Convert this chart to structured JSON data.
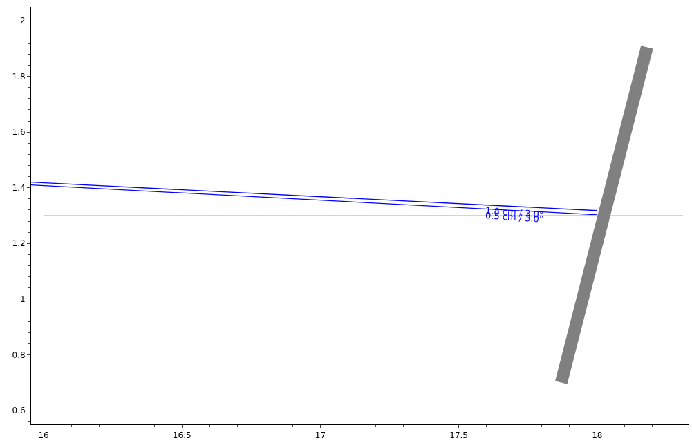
{
  "chart_data": {
    "type": "line",
    "xlim": [
      15.955,
      18.33
    ],
    "ylim": [
      0.55,
      2.05
    ],
    "xticks": [
      16,
      16.5,
      17,
      17.5,
      18
    ],
    "yticks": [
      0.6,
      0.8,
      {
        "value": 1,
        "label": "1"
      },
      1.2,
      1.4,
      1.6,
      1.8,
      {
        "value": 2,
        "label": "2"
      }
    ],
    "marker": "none",
    "line_style": "solid",
    "series": [
      {
        "color": "#0000ff",
        "x": [
          15.955,
          18.0
        ],
        "values": [
          1.42,
          1.318
        ]
      },
      {
        "color": "#0000ff",
        "x": [
          15.955,
          18.0
        ],
        "values": [
          1.41,
          1.303
        ]
      },
      {
        "color": "#d3d3d3",
        "x": [
          16.0,
          18.31
        ],
        "values": [
          1.3,
          1.3
        ]
      },
      {
        "color": "#808080",
        "x": [
          17.87,
          18.18
        ],
        "values": [
          0.7,
          1.905
        ]
      }
    ],
    "annotations": [
      {
        "text": "1.8 cm / 3.0°",
        "x": 17.7,
        "y": 1.31
      },
      {
        "text": "0.5 cm / 3.0°",
        "x": 17.7,
        "y": 1.295
      }
    ]
  }
}
